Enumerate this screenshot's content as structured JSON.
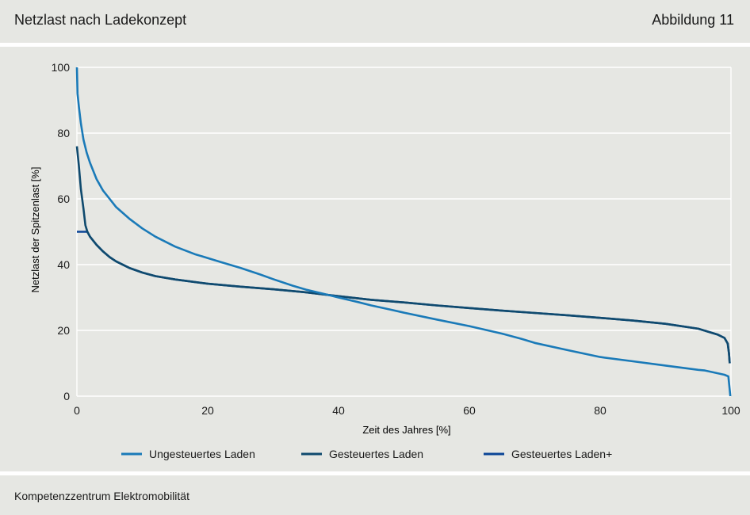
{
  "header": {
    "title": "Netzlast nach Ladekonzept",
    "figure_label": "Abbildung 11"
  },
  "footer": {
    "source": "Kompetenzzentrum Elektromobilität"
  },
  "colors": {
    "ungesteuert": "#1a7ab8",
    "gesteuert": "#0f4a6e",
    "gesteuert_plus": "#0b4596",
    "background": "#e6e7e3",
    "grid": "#ffffff"
  },
  "chart_data": {
    "type": "line",
    "title": "",
    "xlabel": "Zeit des Jahres [%]",
    "ylabel": "Netzlast der Spitzenlast [%]",
    "xlim": [
      0,
      100
    ],
    "ylim": [
      0,
      100
    ],
    "xticks": [
      0,
      20,
      40,
      60,
      80,
      100
    ],
    "yticks": [
      0,
      20,
      40,
      60,
      80,
      100
    ],
    "grid": "horizontal",
    "legend_position": "bottom",
    "series": [
      {
        "name": "Ungesteuertes Laden",
        "color": "#1a7ab8",
        "points": [
          [
            0,
            100
          ],
          [
            0.1,
            92
          ],
          [
            0.3,
            88
          ],
          [
            0.6,
            83
          ],
          [
            1,
            78
          ],
          [
            1.5,
            74
          ],
          [
            2,
            71
          ],
          [
            3,
            66
          ],
          [
            4,
            62.5
          ],
          [
            5,
            60
          ],
          [
            6,
            57.5
          ],
          [
            8,
            54
          ],
          [
            10,
            51
          ],
          [
            12,
            48.5
          ],
          [
            15,
            45.5
          ],
          [
            18,
            43.2
          ],
          [
            22,
            40.8
          ],
          [
            25,
            39
          ],
          [
            28,
            37
          ],
          [
            30,
            35.6
          ],
          [
            33,
            33.6
          ],
          [
            35,
            32.4
          ],
          [
            38,
            31
          ],
          [
            40,
            30
          ],
          [
            43,
            28.6
          ],
          [
            45,
            27.6
          ],
          [
            48,
            26.3
          ],
          [
            50,
            25.4
          ],
          [
            55,
            23.3
          ],
          [
            60,
            21.3
          ],
          [
            65,
            19
          ],
          [
            68,
            17.4
          ],
          [
            70,
            16.2
          ],
          [
            75,
            14
          ],
          [
            80,
            11.9
          ],
          [
            85,
            10.6
          ],
          [
            90,
            9.3
          ],
          [
            95,
            8
          ],
          [
            96,
            7.8
          ],
          [
            99,
            6.5
          ],
          [
            99.6,
            6
          ],
          [
            99.8,
            2
          ],
          [
            99.9,
            0
          ]
        ]
      },
      {
        "name": "Gesteuertes Laden",
        "color": "#0f4a6e",
        "points": [
          [
            0,
            76
          ],
          [
            0.3,
            70
          ],
          [
            0.6,
            63
          ],
          [
            1,
            57
          ],
          [
            1.3,
            52
          ],
          [
            1.6,
            50
          ],
          [
            2,
            48.5
          ],
          [
            3,
            46
          ],
          [
            4,
            44
          ],
          [
            5,
            42.3
          ],
          [
            6,
            41
          ],
          [
            8,
            39
          ],
          [
            10,
            37.6
          ],
          [
            12,
            36.5
          ],
          [
            15,
            35.5
          ],
          [
            20,
            34.2
          ],
          [
            25,
            33.3
          ],
          [
            30,
            32.5
          ],
          [
            35,
            31.6
          ],
          [
            40,
            30.4
          ],
          [
            45,
            29.3
          ],
          [
            50,
            28.5
          ],
          [
            55,
            27.6
          ],
          [
            60,
            26.8
          ],
          [
            65,
            26
          ],
          [
            70,
            25.3
          ],
          [
            75,
            24.6
          ],
          [
            80,
            23.8
          ],
          [
            85,
            23
          ],
          [
            90,
            22
          ],
          [
            95,
            20.5
          ],
          [
            98,
            18.7
          ],
          [
            99,
            17.7
          ],
          [
            99.5,
            16
          ],
          [
            99.7,
            13
          ],
          [
            99.8,
            10
          ]
        ]
      },
      {
        "name": "Gesteuertes Laden+",
        "color": "#0b4596",
        "points": [
          [
            0,
            50
          ],
          [
            1.3,
            50
          ],
          [
            1.6,
            50
          ],
          [
            2,
            48.5
          ],
          [
            3,
            46
          ],
          [
            4,
            44
          ],
          [
            5,
            42.3
          ],
          [
            6,
            41
          ],
          [
            8,
            39
          ],
          [
            10,
            37.6
          ],
          [
            12,
            36.5
          ],
          [
            15,
            35.5
          ],
          [
            20,
            34.2
          ],
          [
            25,
            33.3
          ],
          [
            30,
            32.5
          ],
          [
            35,
            31.6
          ],
          [
            40,
            30.4
          ],
          [
            45,
            29.3
          ],
          [
            50,
            28.5
          ],
          [
            55,
            27.6
          ],
          [
            60,
            26.8
          ],
          [
            65,
            26
          ],
          [
            70,
            25.3
          ],
          [
            75,
            24.6
          ],
          [
            80,
            23.8
          ],
          [
            85,
            23
          ],
          [
            90,
            22
          ],
          [
            95,
            20.5
          ],
          [
            98,
            18.7
          ],
          [
            99,
            17.7
          ],
          [
            99.5,
            16
          ],
          [
            99.7,
            13
          ],
          [
            99.8,
            10
          ]
        ]
      }
    ]
  }
}
